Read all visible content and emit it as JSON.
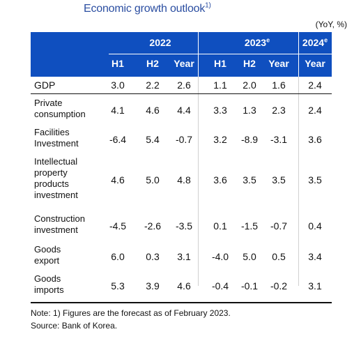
{
  "title": "Economic growth outlook",
  "title_sup": "1)",
  "unit": "(YoY, %)",
  "header": {
    "year_2022": "2022",
    "year_2023": "2023",
    "year_2023_sup": "e",
    "year_2024": "2024",
    "year_2024_sup": "e",
    "h1": "H1",
    "h2": "H2",
    "year": "Year",
    "h1b": "H1",
    "h2b": "H2",
    "yearb": "Year",
    "yearc": "Year"
  },
  "rows": [
    {
      "label": "GDP",
      "values": [
        "3.0",
        "2.2",
        "2.6",
        "1.1",
        "2.0",
        "1.6",
        "2.4"
      ]
    },
    {
      "label": "Private\nconsumption",
      "values": [
        "4.1",
        "4.6",
        "4.4",
        "3.3",
        "1.3",
        "2.3",
        "2.4"
      ]
    },
    {
      "label": "Facilities\nInvestment",
      "values": [
        "-6.4",
        "5.4",
        "-0.7",
        "3.2",
        "-8.9",
        "-3.1",
        "3.6"
      ]
    },
    {
      "label": "Intellectual\nproperty\nproducts\ninvestment",
      "values": [
        "4.6",
        "5.0",
        "4.8",
        "3.6",
        "3.5",
        "3.5",
        "3.5"
      ]
    },
    {
      "label": "Construction\ninvestment",
      "values": [
        "-4.5",
        "-2.6",
        "-3.5",
        "0.1",
        "-1.5",
        "-0.7",
        "0.4"
      ]
    },
    {
      "label": "Goods\nexport",
      "values": [
        "6.0",
        "0.3",
        "3.1",
        "-4.0",
        "5.0",
        "0.5",
        "3.4"
      ]
    },
    {
      "label": "Goods\nimports",
      "values": [
        "5.3",
        "3.9",
        "4.6",
        "-0.4",
        "-0.1",
        "-0.2",
        "3.1"
      ]
    }
  ],
  "note": "Note: 1) Figures are the forecast as of February 2023.",
  "source": "Source: Bank of Korea."
}
